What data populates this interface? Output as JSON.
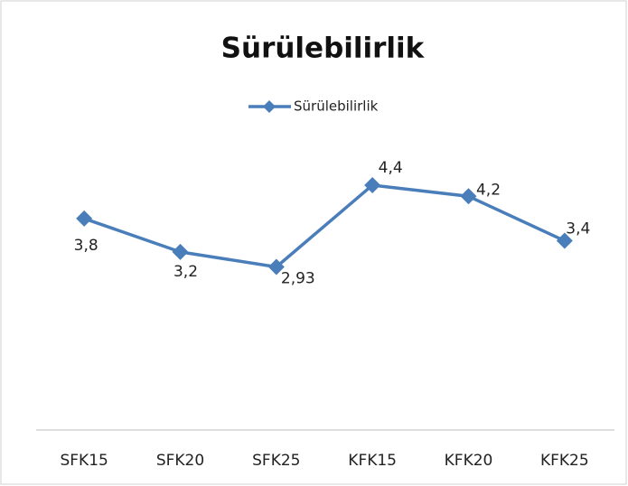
{
  "chart_data": {
    "type": "line",
    "title": "Sürülebilirlik",
    "categories": [
      "SFK15",
      "SFK20",
      "SFK25",
      "KFK15",
      "KFK20",
      "KFK25"
    ],
    "series": [
      {
        "name": "Sürülebilirlik",
        "color": "#4a7ebb",
        "values": [
          3.8,
          3.2,
          2.93,
          4.4,
          4.2,
          3.4
        ],
        "value_labels": [
          "3,8",
          "3,2",
          "2,93",
          "4,4",
          "4,2",
          "3,4"
        ]
      }
    ],
    "ylim": [
      0,
      5
    ],
    "grid": false,
    "legend": "top"
  }
}
